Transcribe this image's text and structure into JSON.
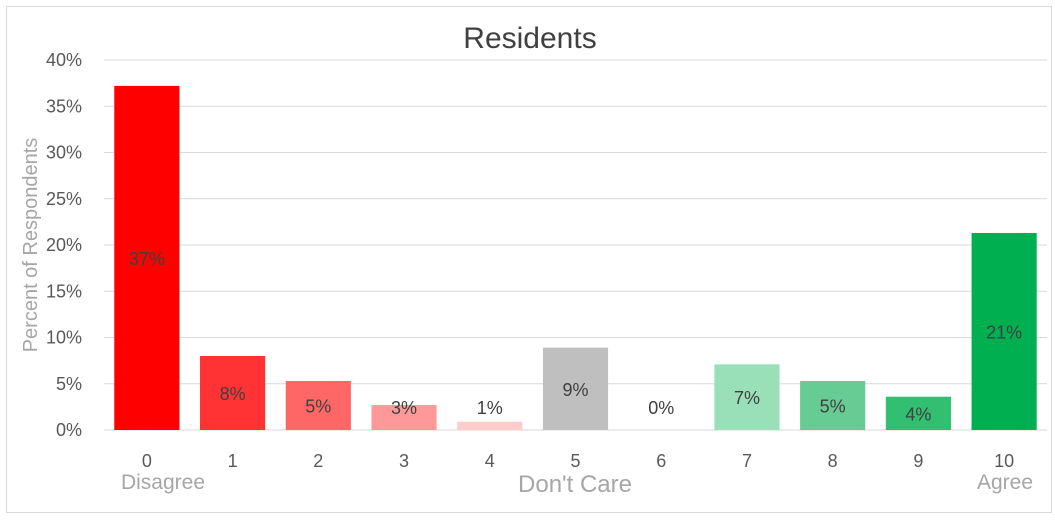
{
  "chart_data": {
    "type": "bar",
    "title": "Residents",
    "ylabel": "Percent of Respondents",
    "xlabel": "",
    "ylim": [
      0,
      40
    ],
    "yticks": [
      0,
      5,
      10,
      15,
      20,
      25,
      30,
      35,
      40
    ],
    "ytick_labels": [
      "0%",
      "5%",
      "10%",
      "15%",
      "20%",
      "25%",
      "30%",
      "35%",
      "40%"
    ],
    "categories": [
      "0",
      "1",
      "2",
      "3",
      "4",
      "5",
      "6",
      "7",
      "8",
      "9",
      "10"
    ],
    "values": [
      37.2,
      8.0,
      5.3,
      2.7,
      0.9,
      8.9,
      0.0,
      7.1,
      5.3,
      3.6,
      21.3
    ],
    "data_labels": [
      "37%",
      "8%",
      "5%",
      "3%",
      "1%",
      "9%",
      "0%",
      "7%",
      "5%",
      "4%",
      "21%"
    ],
    "colors": [
      "#ff0000",
      "#ff3333",
      "#ff6666",
      "#ff9999",
      "#ffcccc",
      "#bfbfbf",
      "#ffffff",
      "#99e0b8",
      "#66cc94",
      "#33bf71",
      "#00b050"
    ],
    "scale_labels": {
      "left": "Disagree",
      "middle": "Don't Care",
      "right": "Agree"
    },
    "grid": true,
    "legend": "none"
  }
}
